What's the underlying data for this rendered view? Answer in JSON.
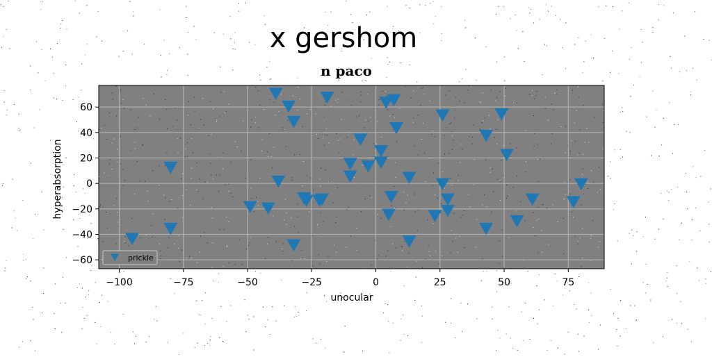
{
  "chart_data": {
    "type": "scatter",
    "suptitle": "x gershom",
    "title": "n paco",
    "xlabel": "unocular",
    "ylabel": "hyperabsorption",
    "xlim": [
      -108,
      89
    ],
    "ylim": [
      -67,
      77
    ],
    "xticks": [
      -100,
      -75,
      -50,
      -25,
      0,
      25,
      50,
      75
    ],
    "yticks": [
      -60,
      -40,
      -20,
      0,
      20,
      40,
      60
    ],
    "grid": true,
    "legend_position": "lower-left",
    "background": "#808080",
    "marker": "triangle-down",
    "series": [
      {
        "name": "prickle",
        "color": "#1f77b4",
        "points": [
          [
            -39,
            71
          ],
          [
            -34,
            61
          ],
          [
            -32,
            49
          ],
          [
            -19,
            68
          ],
          [
            4,
            64
          ],
          [
            7,
            66
          ],
          [
            8,
            44
          ],
          [
            26,
            54
          ],
          [
            49,
            55
          ],
          [
            -6,
            35
          ],
          [
            43,
            38
          ],
          [
            51,
            23
          ],
          [
            2,
            26
          ],
          [
            2,
            17
          ],
          [
            -10,
            16
          ],
          [
            -3,
            14
          ],
          [
            -10,
            6
          ],
          [
            -38,
            2
          ],
          [
            13,
            5
          ],
          [
            26,
            0
          ],
          [
            80,
            0
          ],
          [
            -28,
            -11
          ],
          [
            -27,
            -13
          ],
          [
            -22,
            -13
          ],
          [
            -21,
            -12
          ],
          [
            -49,
            -18
          ],
          [
            -42,
            -19
          ],
          [
            6,
            -10
          ],
          [
            28,
            -12
          ],
          [
            61,
            -12
          ],
          [
            77,
            -14
          ],
          [
            5,
            -24
          ],
          [
            23,
            -25
          ],
          [
            28,
            -21
          ],
          [
            43,
            -35
          ],
          [
            55,
            -29
          ],
          [
            -80,
            13
          ],
          [
            -80,
            -35
          ],
          [
            -95,
            -43
          ],
          [
            -32,
            -48
          ],
          [
            13,
            -45
          ]
        ]
      }
    ]
  }
}
